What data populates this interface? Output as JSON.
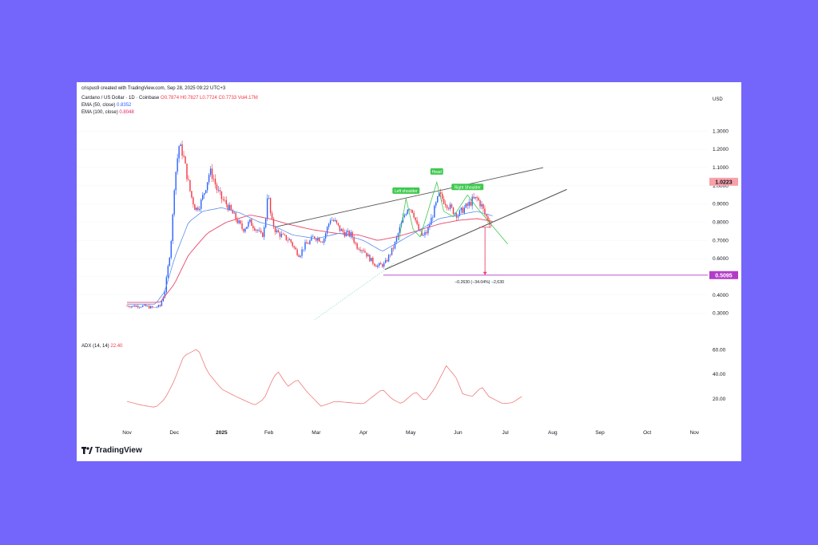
{
  "colors": {
    "up": "#2962ff",
    "down": "#f23645",
    "ema50": "#5b8cf0",
    "ema100": "#e8476a",
    "adx": "#f07a7a",
    "pattern": "#3fc94f",
    "trend": "#555555",
    "purple": "#b23cc7",
    "target_arrow": "#e8476a"
  },
  "header": {
    "credit": "crispus9 created with TradingView.com, Sep 28, 2025 09:22 UTC+3",
    "symbol": "Cardano / US Dollar · 1D · Coinbase",
    "ohlc": "O0.7874 H0.7827 L0.7724 C0.7733 Vol4.17M",
    "ema50_label": "EMA (50, close)",
    "ema50_value": "0.8352",
    "ema100_label": "EMA (100, close)",
    "ema100_value": "0.8048",
    "adx_label": "ADX (14, 14)",
    "adx_value": "22.40"
  },
  "logo_text": "TradingView",
  "chart_data": {
    "type": "candlestick",
    "currency_label": "USD",
    "price_ticks": [
      "1.3000",
      "1.2000",
      "1.1000",
      "1.0000",
      "0.9000",
      "0.8000",
      "0.7000",
      "0.6000",
      "0.5000",
      "0.4000",
      "0.3000"
    ],
    "ylim": [
      0.25,
      1.35
    ],
    "x_ticks": [
      "Nov",
      "Dec",
      "2025",
      "Feb",
      "Mar",
      "Apr",
      "May",
      "Jun",
      "Jul",
      "Aug",
      "Sep",
      "Oct",
      "Nov"
    ],
    "x_tick_months": [
      0,
      1,
      2,
      3,
      4,
      5,
      6,
      7,
      8,
      9,
      10,
      11,
      12
    ],
    "closes": [
      [
        0.0,
        0.34
      ],
      [
        0.35,
        0.34
      ],
      [
        0.55,
        0.33
      ],
      [
        0.7,
        0.34
      ],
      [
        0.8,
        0.42
      ],
      [
        0.9,
        0.62
      ],
      [
        0.95,
        0.75
      ],
      [
        1.0,
        1.0
      ],
      [
        1.05,
        1.12
      ],
      [
        1.1,
        1.22
      ],
      [
        1.18,
        1.18
      ],
      [
        1.25,
        1.08
      ],
      [
        1.35,
        0.95
      ],
      [
        1.45,
        0.87
      ],
      [
        1.55,
        0.9
      ],
      [
        1.65,
        0.98
      ],
      [
        1.75,
        1.08
      ],
      [
        1.82,
        1.05
      ],
      [
        1.9,
        0.98
      ],
      [
        2.0,
        0.93
      ],
      [
        2.1,
        0.9
      ],
      [
        2.2,
        0.86
      ],
      [
        2.3,
        0.82
      ],
      [
        2.45,
        0.76
      ],
      [
        2.6,
        0.8
      ],
      [
        2.75,
        0.76
      ],
      [
        2.85,
        0.72
      ],
      [
        2.92,
        0.78
      ],
      [
        2.97,
        0.96
      ],
      [
        3.0,
        0.92
      ],
      [
        3.05,
        0.81
      ],
      [
        3.15,
        0.75
      ],
      [
        3.3,
        0.72
      ],
      [
        3.45,
        0.7
      ],
      [
        3.55,
        0.65
      ],
      [
        3.65,
        0.62
      ],
      [
        3.75,
        0.67
      ],
      [
        3.85,
        0.69
      ],
      [
        3.95,
        0.72
      ],
      [
        4.05,
        0.71
      ],
      [
        4.15,
        0.7
      ],
      [
        4.3,
        0.82
      ],
      [
        4.4,
        0.8
      ],
      [
        4.5,
        0.76
      ],
      [
        4.6,
        0.74
      ],
      [
        4.75,
        0.73
      ],
      [
        4.85,
        0.67
      ],
      [
        5.0,
        0.65
      ],
      [
        5.1,
        0.61
      ],
      [
        5.2,
        0.58
      ],
      [
        5.3,
        0.56
      ],
      [
        5.45,
        0.57
      ],
      [
        5.55,
        0.62
      ],
      [
        5.65,
        0.67
      ],
      [
        5.75,
        0.75
      ],
      [
        5.85,
        0.83
      ],
      [
        5.95,
        0.89
      ],
      [
        6.05,
        0.86
      ],
      [
        6.15,
        0.76
      ],
      [
        6.25,
        0.72
      ],
      [
        6.35,
        0.75
      ],
      [
        6.5,
        0.87
      ],
      [
        6.6,
        0.95
      ],
      [
        6.7,
        0.92
      ],
      [
        6.8,
        0.89
      ],
      [
        6.9,
        0.86
      ],
      [
        7.0,
        0.84
      ],
      [
        7.1,
        0.87
      ],
      [
        7.2,
        0.89
      ],
      [
        7.3,
        0.92
      ],
      [
        7.4,
        0.93
      ],
      [
        7.5,
        0.89
      ],
      [
        7.57,
        0.84
      ],
      [
        7.65,
        0.81
      ],
      [
        7.73,
        0.774
      ]
    ],
    "ema50": [
      [
        0.0,
        0.35
      ],
      [
        0.6,
        0.35
      ],
      [
        0.8,
        0.42
      ],
      [
        1.0,
        0.6
      ],
      [
        1.3,
        0.8
      ],
      [
        1.6,
        0.86
      ],
      [
        2.0,
        0.88
      ],
      [
        2.4,
        0.85
      ],
      [
        2.8,
        0.8
      ],
      [
        3.1,
        0.78
      ],
      [
        3.5,
        0.73
      ],
      [
        4.0,
        0.71
      ],
      [
        4.5,
        0.74
      ],
      [
        5.0,
        0.7
      ],
      [
        5.4,
        0.64
      ],
      [
        5.8,
        0.7
      ],
      [
        6.2,
        0.76
      ],
      [
        6.6,
        0.82
      ],
      [
        7.0,
        0.84
      ],
      [
        7.4,
        0.86
      ],
      [
        7.73,
        0.835
      ]
    ],
    "ema100": [
      [
        0.0,
        0.36
      ],
      [
        0.7,
        0.36
      ],
      [
        1.0,
        0.46
      ],
      [
        1.3,
        0.62
      ],
      [
        1.7,
        0.74
      ],
      [
        2.1,
        0.8
      ],
      [
        2.6,
        0.84
      ],
      [
        3.0,
        0.82
      ],
      [
        3.4,
        0.79
      ],
      [
        3.9,
        0.76
      ],
      [
        4.4,
        0.74
      ],
      [
        4.9,
        0.73
      ],
      [
        5.3,
        0.7
      ],
      [
        5.7,
        0.72
      ],
      [
        6.1,
        0.75
      ],
      [
        6.6,
        0.79
      ],
      [
        7.0,
        0.81
      ],
      [
        7.4,
        0.82
      ],
      [
        7.73,
        0.805
      ]
    ],
    "adx": [
      [
        0.0,
        18
      ],
      [
        0.3,
        15
      ],
      [
        0.6,
        13
      ],
      [
        0.8,
        20
      ],
      [
        1.0,
        35
      ],
      [
        1.2,
        55
      ],
      [
        1.5,
        61
      ],
      [
        1.7,
        42
      ],
      [
        2.0,
        28
      ],
      [
        2.3,
        22
      ],
      [
        2.7,
        15
      ],
      [
        2.9,
        20
      ],
      [
        3.1,
        38
      ],
      [
        3.2,
        42
      ],
      [
        3.4,
        30
      ],
      [
        3.6,
        36
      ],
      [
        3.8,
        26
      ],
      [
        4.1,
        14
      ],
      [
        4.4,
        18
      ],
      [
        4.7,
        17
      ],
      [
        5.0,
        16
      ],
      [
        5.2,
        22
      ],
      [
        5.4,
        28
      ],
      [
        5.6,
        20
      ],
      [
        5.8,
        16
      ],
      [
        6.1,
        26
      ],
      [
        6.3,
        18
      ],
      [
        6.5,
        28
      ],
      [
        6.75,
        47
      ],
      [
        6.95,
        38
      ],
      [
        7.1,
        24
      ],
      [
        7.3,
        22
      ],
      [
        7.5,
        30
      ],
      [
        7.65,
        22
      ],
      [
        7.8,
        19
      ],
      [
        7.95,
        16
      ],
      [
        8.15,
        17
      ],
      [
        8.35,
        22
      ]
    ],
    "adx_ticks": [
      "60.00",
      "40.00",
      "20.00"
    ],
    "adx_range": [
      5,
      70
    ],
    "annotations": {
      "left_shoulder": "Left shoulder",
      "head": "Head",
      "right_shoulder": "Right Shoulder",
      "price_badge": "1.0223",
      "target_badge": "0.5095",
      "measure": "−0.2630 (−34.04%) −2,630"
    },
    "levels": {
      "current": 1.0223,
      "target": 0.5095,
      "measure_top": 0.7725
    }
  }
}
